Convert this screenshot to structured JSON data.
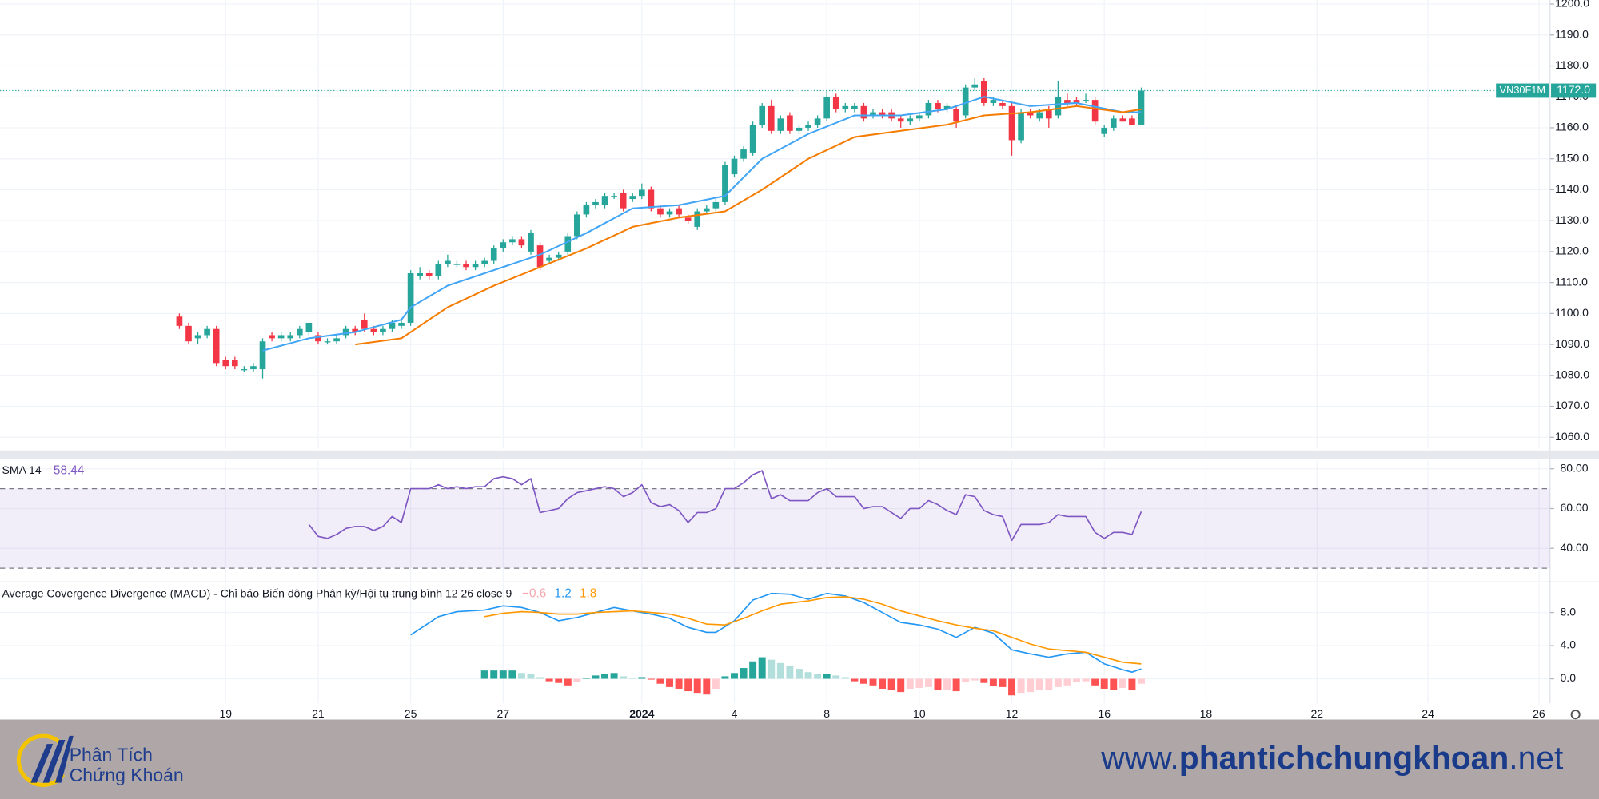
{
  "chart_data": [
    {
      "type": "candlestick",
      "symbol": "VN30F1M",
      "last_price": {
        "value": 1172,
        "label": "1172.0"
      },
      "xlim": [
        -19.4,
        148.2
      ],
      "xticks": [
        {
          "value": 5,
          "label": "19"
        },
        {
          "value": 15,
          "label": "21"
        },
        {
          "value": 25,
          "label": "25"
        },
        {
          "value": 35,
          "label": "27"
        },
        {
          "value": 50,
          "label": "2024"
        },
        {
          "value": 60,
          "label": "4"
        },
        {
          "value": 70,
          "label": "8"
        },
        {
          "value": 80,
          "label": "10"
        },
        {
          "value": 90,
          "label": "12"
        },
        {
          "value": 100,
          "label": "16"
        },
        {
          "value": 111,
          "label": "18"
        },
        {
          "value": 123,
          "label": "22"
        },
        {
          "value": 135,
          "label": "24"
        },
        {
          "value": 147,
          "label": "26"
        }
      ],
      "ylim": [
        1056.4,
        1201.3
      ],
      "yticks": [
        {
          "value": 1060,
          "label": "1060.0"
        },
        {
          "value": 1070,
          "label": "1070.0"
        },
        {
          "value": 1080,
          "label": "1080.0"
        },
        {
          "value": 1090,
          "label": "1090.0"
        },
        {
          "value": 1100,
          "label": "1100.0"
        },
        {
          "value": 1110,
          "label": "1110.0"
        },
        {
          "value": 1120,
          "label": "1120.0"
        },
        {
          "value": 1130,
          "label": "1130.0"
        },
        {
          "value": 1140,
          "label": "1140.0"
        },
        {
          "value": 1150,
          "label": "1150.0"
        },
        {
          "value": 1160,
          "label": "1160.0"
        },
        {
          "value": 1170,
          "label": "1170.0"
        },
        {
          "value": 1180,
          "label": "1180.0"
        },
        {
          "value": 1190,
          "label": "1190.0"
        },
        {
          "value": 1200,
          "label": "1200.0"
        }
      ],
      "grid": true,
      "up_color": "#26a69a",
      "down_color": "#f23645",
      "open": [
        1099,
        1096,
        1092,
        1093,
        1095,
        1085,
        1085,
        1082,
        1082,
        1082,
        1093,
        1092,
        1092,
        1093,
        1094,
        1093,
        1091,
        1091,
        1093,
        1095,
        1098,
        1095,
        1094,
        1095,
        1096,
        1097,
        1112,
        1113,
        1112,
        1116,
        1116,
        1116,
        1115,
        1116,
        1117,
        1121,
        1123,
        1124,
        1120,
        1122,
        1117,
        1118,
        1120,
        1125,
        1132,
        1135,
        1135,
        1138,
        1139,
        1137,
        1138,
        1140,
        1134,
        1132,
        1134,
        1131,
        1128,
        1133,
        1134,
        1136,
        1145,
        1150,
        1152,
        1161,
        1167,
        1159,
        1164,
        1159,
        1160,
        1161,
        1163,
        1170,
        1166,
        1166,
        1167,
        1164,
        1165,
        1165,
        1163,
        1162,
        1163,
        1164,
        1168,
        1166,
        1166,
        1164,
        1173,
        1175,
        1168,
        1168,
        1167,
        1156,
        1165,
        1163,
        1166,
        1164,
        1169,
        1169,
        1169,
        1169,
        1158,
        1160,
        1163,
        1163,
        1161
      ],
      "high": [
        1100,
        1097,
        1094,
        1096,
        1096,
        1086,
        1086,
        1083,
        1084,
        1092,
        1094,
        1094,
        1094,
        1096,
        1097,
        1094,
        1092,
        1093,
        1096,
        1096,
        1100,
        1096,
        1096,
        1098,
        1098,
        1114,
        1115,
        1114,
        1117,
        1119,
        1117,
        1117,
        1117,
        1118,
        1122,
        1124,
        1125,
        1125,
        1127,
        1123,
        1119,
        1120,
        1126,
        1133,
        1136,
        1137,
        1139,
        1139,
        1140,
        1139,
        1142,
        1141,
        1135,
        1134,
        1135,
        1132,
        1134,
        1135,
        1137,
        1149,
        1151,
        1154,
        1162,
        1168,
        1169,
        1164,
        1165,
        1161,
        1162,
        1164,
        1172,
        1171,
        1168,
        1168,
        1168,
        1166,
        1166,
        1166,
        1164,
        1164,
        1165,
        1169,
        1169,
        1168,
        1167,
        1174,
        1176,
        1176,
        1170,
        1169,
        1168,
        1166,
        1166,
        1166,
        1167,
        1175,
        1171,
        1170,
        1171,
        1170,
        1161,
        1164,
        1164,
        1164,
        1173
      ],
      "low": [
        1095,
        1090,
        1090,
        1092,
        1083,
        1082,
        1082,
        1081,
        1081,
        1079,
        1091,
        1091,
        1091,
        1092,
        1093,
        1090,
        1090,
        1090,
        1092,
        1093,
        1094,
        1093,
        1093,
        1094,
        1095,
        1096,
        1111,
        1111,
        1111,
        1115,
        1115,
        1114,
        1114,
        1115,
        1116,
        1120,
        1122,
        1121,
        1119,
        1114,
        1116,
        1117,
        1119,
        1124,
        1131,
        1134,
        1134,
        1137,
        1133,
        1136,
        1137,
        1133,
        1131,
        1131,
        1131,
        1129,
        1127,
        1132,
        1133,
        1135,
        1144,
        1149,
        1151,
        1160,
        1158,
        1158,
        1158,
        1158,
        1159,
        1160,
        1162,
        1165,
        1165,
        1165,
        1162,
        1163,
        1163,
        1162,
        1160,
        1161,
        1162,
        1163,
        1165,
        1165,
        1160,
        1163,
        1172,
        1167,
        1167,
        1166,
        1151,
        1155,
        1163,
        1162,
        1160,
        1163,
        1167,
        1167,
        1168,
        1161,
        1157,
        1159,
        1162,
        1161,
        1161
      ],
      "close": [
        1096,
        1091,
        1093,
        1095,
        1084,
        1083,
        1083,
        1082,
        1083,
        1091,
        1092,
        1093,
        1093,
        1095,
        1097,
        1091,
        1091,
        1092,
        1095,
        1094,
        1095,
        1094,
        1095,
        1097,
        1097,
        1113,
        1113,
        1112,
        1116,
        1117,
        1116,
        1115,
        1116,
        1117,
        1121,
        1123,
        1124,
        1122,
        1126,
        1115,
        1118,
        1119,
        1125,
        1132,
        1135,
        1136,
        1138,
        1138,
        1134,
        1138,
        1140,
        1134,
        1132,
        1133,
        1132,
        1130,
        1133,
        1134,
        1136,
        1148,
        1150,
        1153,
        1161,
        1167,
        1159,
        1163,
        1159,
        1160,
        1161,
        1163,
        1170,
        1166,
        1167,
        1167,
        1163,
        1165,
        1164,
        1163,
        1162,
        1163,
        1164,
        1168,
        1166,
        1167,
        1162,
        1173,
        1174,
        1168,
        1169,
        1167,
        1156,
        1165,
        1164,
        1165,
        1163,
        1170,
        1168,
        1168,
        1169,
        1162,
        1160,
        1163,
        1162,
        1161,
        1172
      ],
      "series": [
        {
          "color": "#42a5f5",
          "x": [
            9,
            14,
            19,
            24,
            25,
            29,
            34,
            39,
            44,
            49,
            54,
            59,
            63,
            68,
            73,
            78,
            83,
            87,
            92,
            97,
            102,
            104
          ],
          "values": [
            1088,
            1092,
            1094,
            1098,
            1102,
            1109,
            1114,
            1119,
            1126,
            1134,
            1135,
            1138,
            1150,
            1158,
            1164,
            1164,
            1166,
            1170,
            1167,
            1168,
            1165,
            1165
          ]
        },
        {
          "color": "#f57c00",
          "x": [
            19,
            24,
            29,
            34,
            39,
            44,
            49,
            54,
            59,
            63,
            68,
            73,
            78,
            83,
            87,
            92,
            97,
            102,
            104
          ],
          "values": [
            1090,
            1092,
            1102,
            1109,
            1115,
            1121,
            1128,
            1131,
            1133,
            1140,
            1150,
            1157,
            1159,
            1161,
            1164,
            1165,
            1167,
            1165,
            1166
          ]
        }
      ]
    },
    {
      "type": "line",
      "title": "SMA 14",
      "ylim": [
        23.6,
        84.1
      ],
      "yticks": [
        {
          "value": 40,
          "label": "40.00"
        },
        {
          "value": 60,
          "label": "60.00"
        },
        {
          "value": 80,
          "label": "80.00"
        }
      ],
      "bands": [
        30,
        70
      ],
      "band_color": "#7e57c2",
      "series": [
        {
          "color": "#7e57c2",
          "values": [
            null,
            null,
            null,
            null,
            null,
            null,
            null,
            null,
            null,
            null,
            null,
            null,
            null,
            null,
            52,
            46,
            45,
            47,
            50,
            51,
            51,
            49,
            51,
            56,
            53,
            70,
            70,
            70,
            72,
            70,
            71,
            70,
            71,
            71,
            75,
            76,
            75,
            72,
            75,
            58,
            59,
            60,
            65,
            68,
            69,
            70,
            71,
            70,
            66,
            68,
            72,
            63,
            61,
            62,
            59,
            53,
            58,
            58,
            60,
            70,
            70,
            73,
            77,
            79,
            65,
            67,
            64,
            64,
            64,
            68,
            70,
            66,
            66,
            66,
            60,
            61,
            61,
            58,
            55,
            60,
            60,
            64,
            62,
            59,
            57,
            67,
            66,
            59,
            57,
            56,
            44,
            52,
            52,
            52,
            53,
            57,
            56,
            56,
            56,
            48,
            45,
            48,
            48,
            47,
            58.44
          ]
        }
      ]
    },
    {
      "type": "macd",
      "title": "Average Covergence Divergence (MACD) - Chỉ báo Biến động Phân kỳ/Hội tụ trung bình 12 26 close 9",
      "legend": [
        "−0.6",
        "1.2",
        "1.8"
      ],
      "legend_colors": [
        "#f7a6ae",
        "#2196f3",
        "#ff9800"
      ],
      "ylim": [
        -2.95,
        11.57
      ],
      "yticks": [
        {
          "value": 0,
          "label": "0.0"
        },
        {
          "value": 4,
          "label": "4.0"
        },
        {
          "value": 8,
          "label": "8.0"
        }
      ],
      "histogram": {
        "colors": [
          "#26a69a",
          "#b2dfdb",
          "#ff5252",
          "#ffcdd2"
        ],
        "values": [
          null,
          null,
          null,
          null,
          null,
          null,
          null,
          null,
          null,
          null,
          null,
          null,
          null,
          null,
          null,
          null,
          null,
          null,
          null,
          null,
          null,
          null,
          null,
          null,
          null,
          null,
          null,
          null,
          null,
          null,
          null,
          null,
          null,
          1.0,
          1.0,
          1.0,
          1.0,
          0.7,
          0.6,
          0.2,
          -0.3,
          -0.5,
          -0.8,
          -0.4,
          0.1,
          0.4,
          0.6,
          0.7,
          0.3,
          0.1,
          0.2,
          -0.1,
          -0.6,
          -1.0,
          -1.2,
          -1.5,
          -1.7,
          -1.9,
          -1.2,
          0.3,
          0.7,
          1.3,
          2.1,
          2.6,
          2.3,
          1.9,
          1.6,
          1.2,
          0.8,
          0.6,
          0.6,
          0.4,
          0.2,
          -0.3,
          -0.6,
          -0.8,
          -1.2,
          -1.4,
          -1.6,
          -1.2,
          -1.1,
          -1.0,
          -1.4,
          -1.3,
          -1.5,
          -0.4,
          -0.2,
          -0.5,
          -0.9,
          -1.0,
          -2.0,
          -1.7,
          -1.6,
          -1.4,
          -1.3,
          -1.0,
          -0.8,
          -0.4,
          -0.3,
          -0.8,
          -1.2,
          -1.3,
          -1.1,
          -1.4,
          -0.6
        ]
      },
      "series": [
        {
          "color": "#2196f3",
          "x": [
            25,
            28,
            30,
            33,
            35,
            37,
            39,
            41,
            43,
            45,
            47,
            49,
            51,
            53,
            55,
            57,
            58,
            60,
            62,
            64,
            66,
            68,
            70,
            72,
            74,
            76,
            78,
            80,
            82,
            84,
            86,
            88,
            90,
            92,
            94,
            96,
            98,
            100,
            102,
            103,
            104
          ],
          "values": [
            5.3,
            7.5,
            8.1,
            8.3,
            8.8,
            8.6,
            8.0,
            7.0,
            7.4,
            8.0,
            8.6,
            8.2,
            7.8,
            7.3,
            6.2,
            5.6,
            5.6,
            7.0,
            9.5,
            10.3,
            10.2,
            9.6,
            10.3,
            10.0,
            9.2,
            8.0,
            6.8,
            6.5,
            6.0,
            5.0,
            6.2,
            5.5,
            3.5,
            3.0,
            2.6,
            3.0,
            3.2,
            1.8,
            1.1,
            0.8,
            1.2
          ]
        },
        {
          "color": "#ff9800",
          "x": [
            33,
            35,
            37,
            39,
            41,
            43,
            45,
            47,
            49,
            51,
            53,
            55,
            57,
            59,
            61,
            63,
            65,
            68,
            70,
            72,
            74,
            76,
            78,
            80,
            82,
            84,
            86,
            88,
            90,
            92,
            94,
            96,
            98,
            100,
            102,
            104
          ],
          "values": [
            7.5,
            7.9,
            8.1,
            8.0,
            7.8,
            7.8,
            8.0,
            8.1,
            8.2,
            8.0,
            7.8,
            7.3,
            6.6,
            6.5,
            7.3,
            8.2,
            9.0,
            9.4,
            9.8,
            9.9,
            9.6,
            9.0,
            8.2,
            7.6,
            7.0,
            6.5,
            6.1,
            5.8,
            5.0,
            4.2,
            3.6,
            3.4,
            3.2,
            2.6,
            2.0,
            1.8
          ]
        }
      ]
    }
  ],
  "footer": {
    "logo_line1": "Phân Tích",
    "logo_line2": "Chứng Khoán",
    "url_prefix": "www.",
    "url_domain": "phantichchungkhoan",
    "url_suffix": ".net"
  }
}
